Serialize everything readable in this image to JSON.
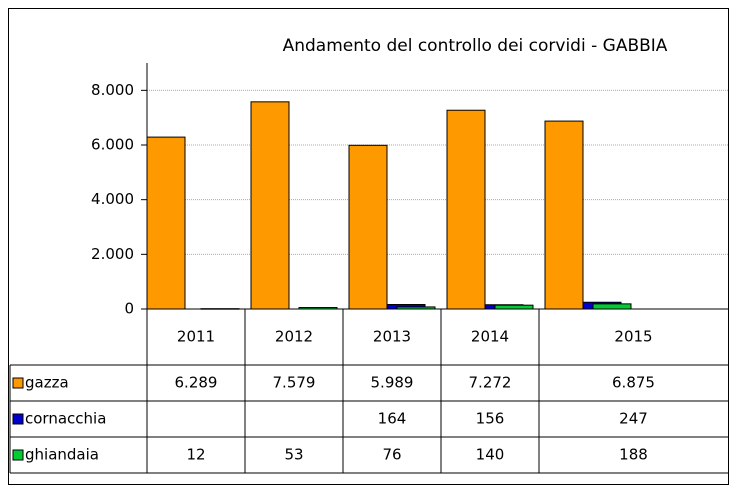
{
  "chart_data": {
    "type": "bar",
    "title": "Andamento del controllo dei corvidi - GABBIA",
    "categories": [
      "2011",
      "2012",
      "2013",
      "2014",
      "2015"
    ],
    "series": [
      {
        "name": "gazza",
        "color": "#ff9900",
        "values": [
          6289,
          7579,
          5989,
          7272,
          6875
        ],
        "value_labels": [
          "6.289",
          "7.579",
          "5.989",
          "7.272",
          "6.875"
        ]
      },
      {
        "name": "cornacchia",
        "color": "#0000cc",
        "values": [
          null,
          null,
          164,
          156,
          247
        ]
      },
      {
        "name": "ghiandaia",
        "color": "#00cc33",
        "values": [
          12,
          53,
          76,
          140,
          188
        ]
      }
    ],
    "ylim": [
      0,
      9000
    ],
    "yticks": [
      {
        "value": 0,
        "label": "0"
      },
      {
        "value": 2000,
        "label": "2.000"
      },
      {
        "value": 4000,
        "label": "4.000"
      },
      {
        "value": 6000,
        "label": "6.000"
      },
      {
        "value": 8000,
        "label": "8.000"
      }
    ],
    "grid": true
  }
}
